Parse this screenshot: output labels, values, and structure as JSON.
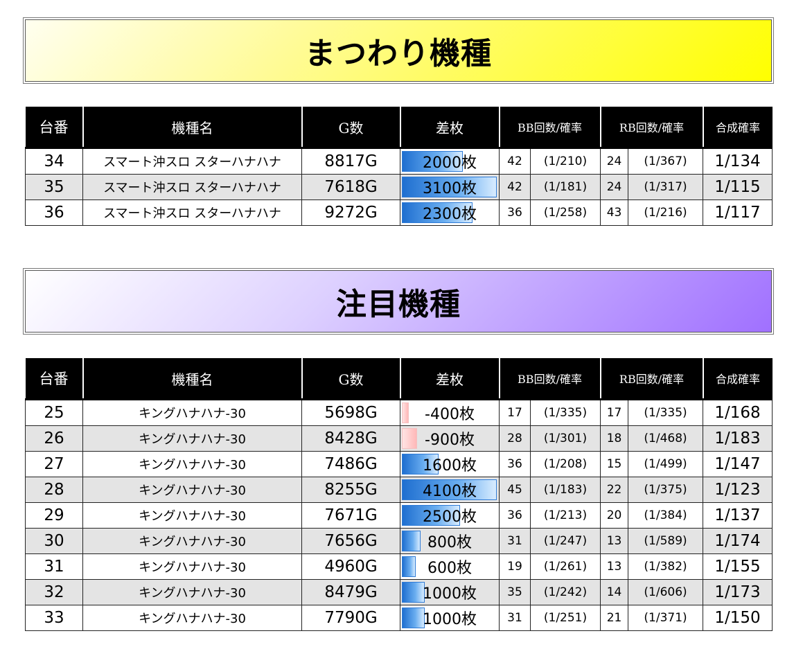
{
  "section1": {
    "title": "まつわり機種",
    "headers": [
      "台番",
      "機種名",
      "G数",
      "差枚",
      "BB回数/確率",
      "RB回数/確率",
      "合成確率"
    ],
    "rows": [
      {
        "no": "34",
        "name": "スマート沖スロ スターハナハナ",
        "games": "8817G",
        "diff": "2000枚",
        "diff_value": 2000,
        "bb": "42",
        "bb_rate": "(1/210)",
        "rb": "24",
        "rb_rate": "(1/367)",
        "total": "1/134"
      },
      {
        "no": "35",
        "name": "スマート沖スロ スターハナハナ",
        "games": "7618G",
        "diff": "3100枚",
        "diff_value": 3100,
        "bb": "42",
        "bb_rate": "(1/181)",
        "rb": "24",
        "rb_rate": "(1/317)",
        "total": "1/115"
      },
      {
        "no": "36",
        "name": "スマート沖スロ スターハナハナ",
        "games": "9272G",
        "diff": "2300枚",
        "diff_value": 2300,
        "bb": "36",
        "bb_rate": "(1/258)",
        "rb": "43",
        "rb_rate": "(1/216)",
        "total": "1/117"
      }
    ]
  },
  "section2": {
    "title": "注目機種",
    "headers": [
      "台番",
      "機種名",
      "G数",
      "差枚",
      "BB回数/確率",
      "RB回数/確率",
      "合成確率"
    ],
    "rows": [
      {
        "no": "25",
        "name": "キングハナハナ-30",
        "games": "5698G",
        "diff": "-400枚",
        "diff_value": -400,
        "bb": "17",
        "bb_rate": "(1/335)",
        "rb": "17",
        "rb_rate": "(1/335)",
        "total": "1/168"
      },
      {
        "no": "26",
        "name": "キングハナハナ-30",
        "games": "8428G",
        "diff": "-900枚",
        "diff_value": -900,
        "bb": "28",
        "bb_rate": "(1/301)",
        "rb": "18",
        "rb_rate": "(1/468)",
        "total": "1/183"
      },
      {
        "no": "27",
        "name": "キングハナハナ-30",
        "games": "7486G",
        "diff": "1600枚",
        "diff_value": 1600,
        "bb": "36",
        "bb_rate": "(1/208)",
        "rb": "15",
        "rb_rate": "(1/499)",
        "total": "1/147"
      },
      {
        "no": "28",
        "name": "キングハナハナ-30",
        "games": "8255G",
        "diff": "4100枚",
        "diff_value": 4100,
        "bb": "45",
        "bb_rate": "(1/183)",
        "rb": "22",
        "rb_rate": "(1/375)",
        "total": "1/123"
      },
      {
        "no": "29",
        "name": "キングハナハナ-30",
        "games": "7671G",
        "diff": "2500枚",
        "diff_value": 2500,
        "bb": "36",
        "bb_rate": "(1/213)",
        "rb": "20",
        "rb_rate": "(1/384)",
        "total": "1/137"
      },
      {
        "no": "30",
        "name": "キングハナハナ-30",
        "games": "7656G",
        "diff": "800枚",
        "diff_value": 800,
        "bb": "31",
        "bb_rate": "(1/247)",
        "rb": "13",
        "rb_rate": "(1/589)",
        "total": "1/174"
      },
      {
        "no": "31",
        "name": "キングハナハナ-30",
        "games": "4960G",
        "diff": "600枚",
        "diff_value": 600,
        "bb": "19",
        "bb_rate": "(1/261)",
        "rb": "13",
        "rb_rate": "(1/382)",
        "total": "1/155"
      },
      {
        "no": "32",
        "name": "キングハナハナ-30",
        "games": "8479G",
        "diff": "1000枚",
        "diff_value": 1000,
        "bb": "35",
        "bb_rate": "(1/242)",
        "rb": "14",
        "rb_rate": "(1/606)",
        "total": "1/173"
      },
      {
        "no": "33",
        "name": "キングハナハナ-30",
        "games": "7790G",
        "diff": "1000枚",
        "diff_value": 1000,
        "bb": "31",
        "bb_rate": "(1/251)",
        "rb": "21",
        "rb_rate": "(1/371)",
        "total": "1/150"
      }
    ]
  }
}
